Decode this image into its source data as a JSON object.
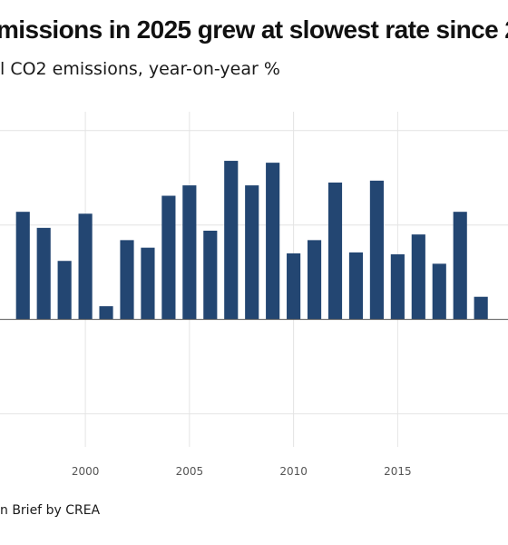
{
  "title": "missions in 2025 grew at slowest rate since 2",
  "subtitle": "l CO2 emissions, year-on-year %",
  "source": "n Brief by CREA",
  "chart_data": {
    "type": "bar",
    "bar_color": "#234672",
    "grid": true,
    "categories": [
      "1997",
      "1998",
      "1999",
      "2000",
      "2001",
      "2002",
      "2003",
      "2004",
      "2005",
      "2006",
      "2007",
      "2008",
      "2009",
      "2010",
      "2011",
      "2012",
      "2013",
      "2014",
      "2015",
      "2016",
      "2017",
      "2018",
      "2019",
      "2020"
    ],
    "values": [
      1.14,
      0.97,
      0.62,
      1.12,
      0.14,
      0.84,
      0.76,
      1.31,
      1.42,
      0.94,
      1.68,
      1.42,
      1.66,
      0.7,
      0.84,
      1.45,
      0.71,
      1.47,
      0.69,
      0.9,
      0.59,
      1.14,
      0.24,
      0.0
    ],
    "ylim": [
      -1.35,
      2.2
    ],
    "ygrid": [
      -1,
      0,
      1,
      2
    ],
    "xlim": [
      1995.9,
      2020.3
    ],
    "xticks": [
      "2000",
      "2005",
      "2010",
      "2015"
    ]
  }
}
